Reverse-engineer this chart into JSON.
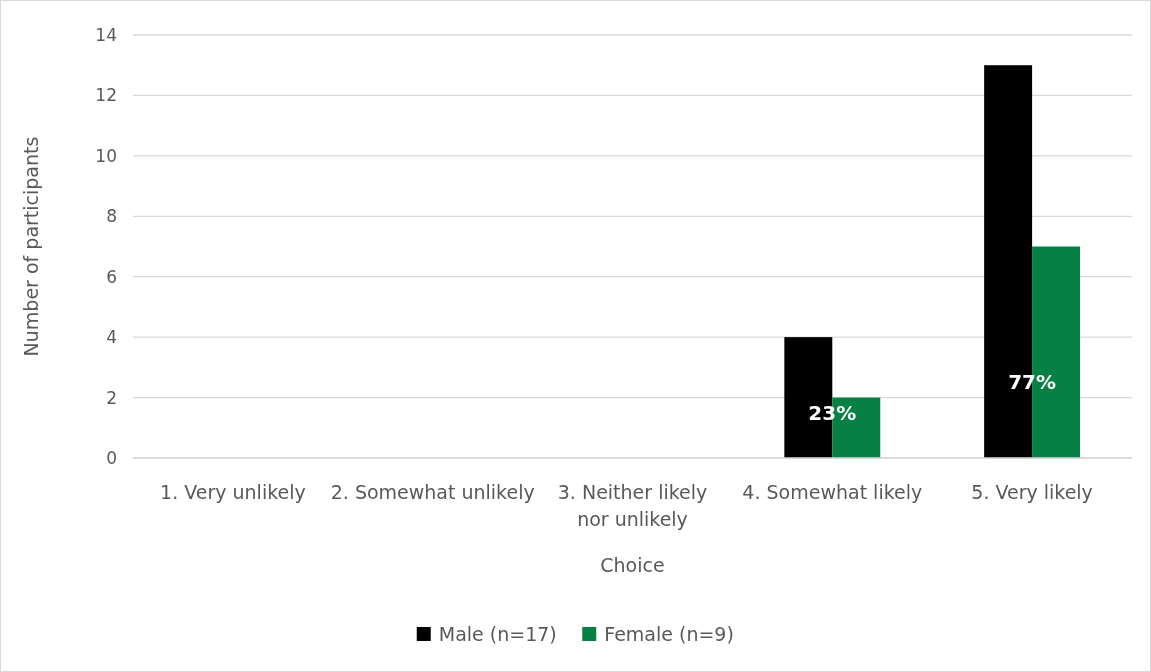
{
  "chart_data": {
    "type": "bar",
    "xlabel": "Choice",
    "ylabel": "Number of participants",
    "categories": [
      "1. Very unlikely",
      "2. Somewhat unlikely",
      "3. Neither likely nor unlikely",
      "4. Somewhat likely",
      "5. Very likely"
    ],
    "series": [
      {
        "name": "Male (n=17)",
        "color": "#000000",
        "values": [
          0,
          0,
          0,
          4,
          13
        ]
      },
      {
        "name": "Female (n=9)",
        "color": "#068043",
        "values": [
          0,
          0,
          0,
          2,
          7
        ]
      }
    ],
    "ylim": [
      0,
      14
    ],
    "yticks": [
      0,
      2,
      4,
      6,
      8,
      10,
      12,
      14
    ],
    "grid": "y",
    "legend": "bottom",
    "annotations": [
      {
        "text": "23%",
        "x": "4. Somewhat likely",
        "y": 1.5
      },
      {
        "text": "77%",
        "x": "5. Very likely",
        "y": 2.5
      }
    ]
  }
}
